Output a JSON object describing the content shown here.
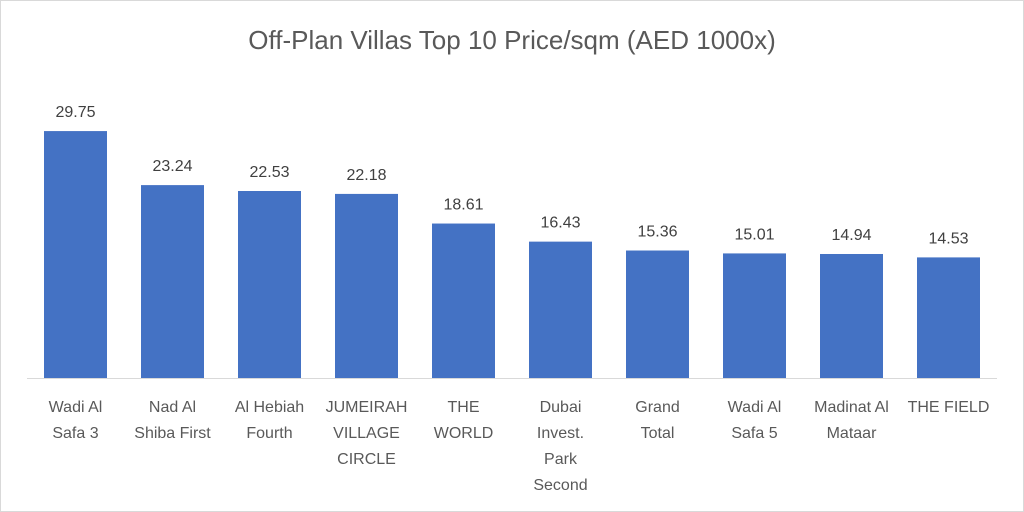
{
  "chart_data": {
    "type": "bar",
    "title": "Off-Plan Villas Top 10 Price/sqm (AED 1000x)",
    "xlabel": "",
    "ylabel": "",
    "categories": [
      [
        "Wadi Al",
        "Safa 3"
      ],
      [
        "Nad Al",
        "Shiba First"
      ],
      [
        "Al Hebiah",
        "Fourth"
      ],
      [
        "JUMEIRAH",
        "VILLAGE",
        "CIRCLE"
      ],
      [
        "THE",
        "WORLD"
      ],
      [
        "Dubai",
        "Invest.",
        "Park",
        "Second"
      ],
      [
        "Grand",
        "Total"
      ],
      [
        "Wadi Al",
        "Safa 5"
      ],
      [
        "Madinat Al",
        "Mataar"
      ],
      [
        "THE FIELD"
      ]
    ],
    "values": [
      29.75,
      23.24,
      22.53,
      22.18,
      18.61,
      16.43,
      15.36,
      15.01,
      14.94,
      14.53
    ],
    "value_labels": [
      "29.75",
      "23.24",
      "22.53",
      "22.18",
      "18.61",
      "16.43",
      "15.36",
      "15.01",
      "14.94",
      "14.53"
    ],
    "ylim": [
      0,
      35
    ],
    "grid": false,
    "legend": "none",
    "bar_color": "#4472C4",
    "axis_color": "#d9d9d9"
  }
}
